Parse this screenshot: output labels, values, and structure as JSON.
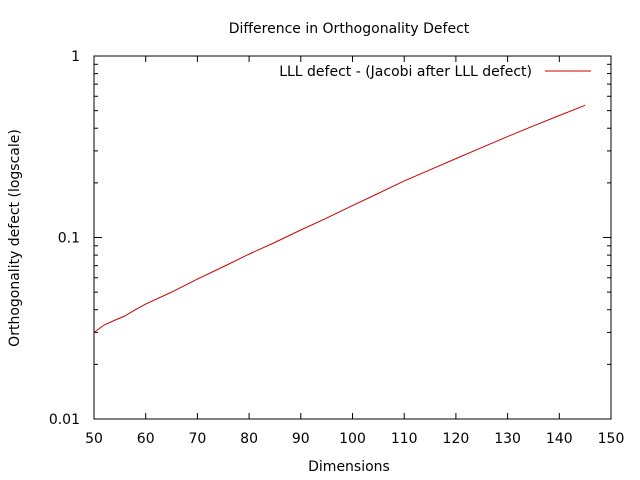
{
  "chart_data": {
    "type": "line",
    "title": "Difference in Orthogonality Defect",
    "xlabel": "Dimensions",
    "ylabel": "Orthogonality defect (logscale)",
    "xlim": [
      50,
      150
    ],
    "ylim": [
      0.01,
      1
    ],
    "yscale": "log",
    "grid": false,
    "legend_position": "top-right",
    "xticks": [
      50,
      60,
      70,
      80,
      90,
      100,
      110,
      120,
      130,
      140,
      150
    ],
    "xtick_labels": [
      "50",
      "60",
      "70",
      "80",
      "90",
      "100",
      "110",
      "120",
      "130",
      "140",
      "150"
    ],
    "yticks": [
      0.01,
      0.1,
      1
    ],
    "ytick_labels": [
      "0.01",
      "0.1",
      "1"
    ],
    "series": [
      {
        "name": "LLL defect - (Jacobi after LLL defect)",
        "color": "#cc0000",
        "x": [
          50,
          52,
          54,
          56,
          58,
          60,
          65,
          70,
          75,
          80,
          85,
          90,
          95,
          100,
          105,
          110,
          115,
          120,
          125,
          130,
          135,
          140,
          145
        ],
        "y": [
          0.03,
          0.033,
          0.035,
          0.037,
          0.04,
          0.043,
          0.05,
          0.059,
          0.069,
          0.081,
          0.094,
          0.11,
          0.128,
          0.15,
          0.175,
          0.205,
          0.236,
          0.272,
          0.313,
          0.36,
          0.412,
          0.47,
          0.535
        ]
      }
    ]
  }
}
